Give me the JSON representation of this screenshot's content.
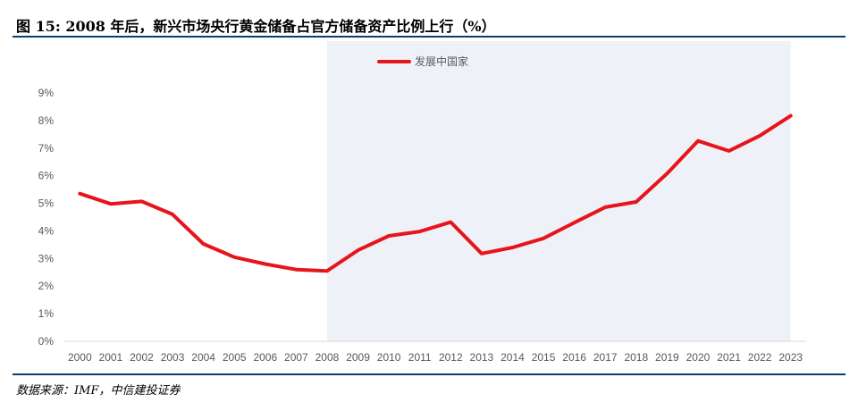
{
  "header": {
    "title": "图 15: 2008 年后，新兴市场央行黄金储备占官方储备资产比例上行（%）"
  },
  "footer": {
    "source": "数据来源：IMF，中信建投证券"
  },
  "colors": {
    "line": "#e8141c",
    "shade": "#eef2f8",
    "rule": "#0b3d6e",
    "axis": "#d9d9d9",
    "text": "#595959"
  },
  "chart_data": {
    "type": "line",
    "x": [
      "2000",
      "2001",
      "2002",
      "2003",
      "2004",
      "2005",
      "2006",
      "2007",
      "2008",
      "2009",
      "2010",
      "2011",
      "2012",
      "2013",
      "2014",
      "2015",
      "2016",
      "2017",
      "2018",
      "2019",
      "2020",
      "2021",
      "2022",
      "2023"
    ],
    "series": [
      {
        "name": "发展中国家",
        "values": [
          5.35,
          4.98,
          5.07,
          4.6,
          3.53,
          3.05,
          2.8,
          2.6,
          2.55,
          3.3,
          3.82,
          3.98,
          4.32,
          3.18,
          3.4,
          3.73,
          4.3,
          4.86,
          5.05,
          6.08,
          7.26,
          6.9,
          7.45,
          8.17
        ]
      }
    ],
    "y_ticks": [
      "0%",
      "1%",
      "2%",
      "3%",
      "4%",
      "5%",
      "6%",
      "7%",
      "8%",
      "9%"
    ],
    "ylim": [
      0,
      9
    ],
    "shaded_range": [
      "2008",
      "2023"
    ],
    "legend_position": "top-center",
    "grid": false
  }
}
